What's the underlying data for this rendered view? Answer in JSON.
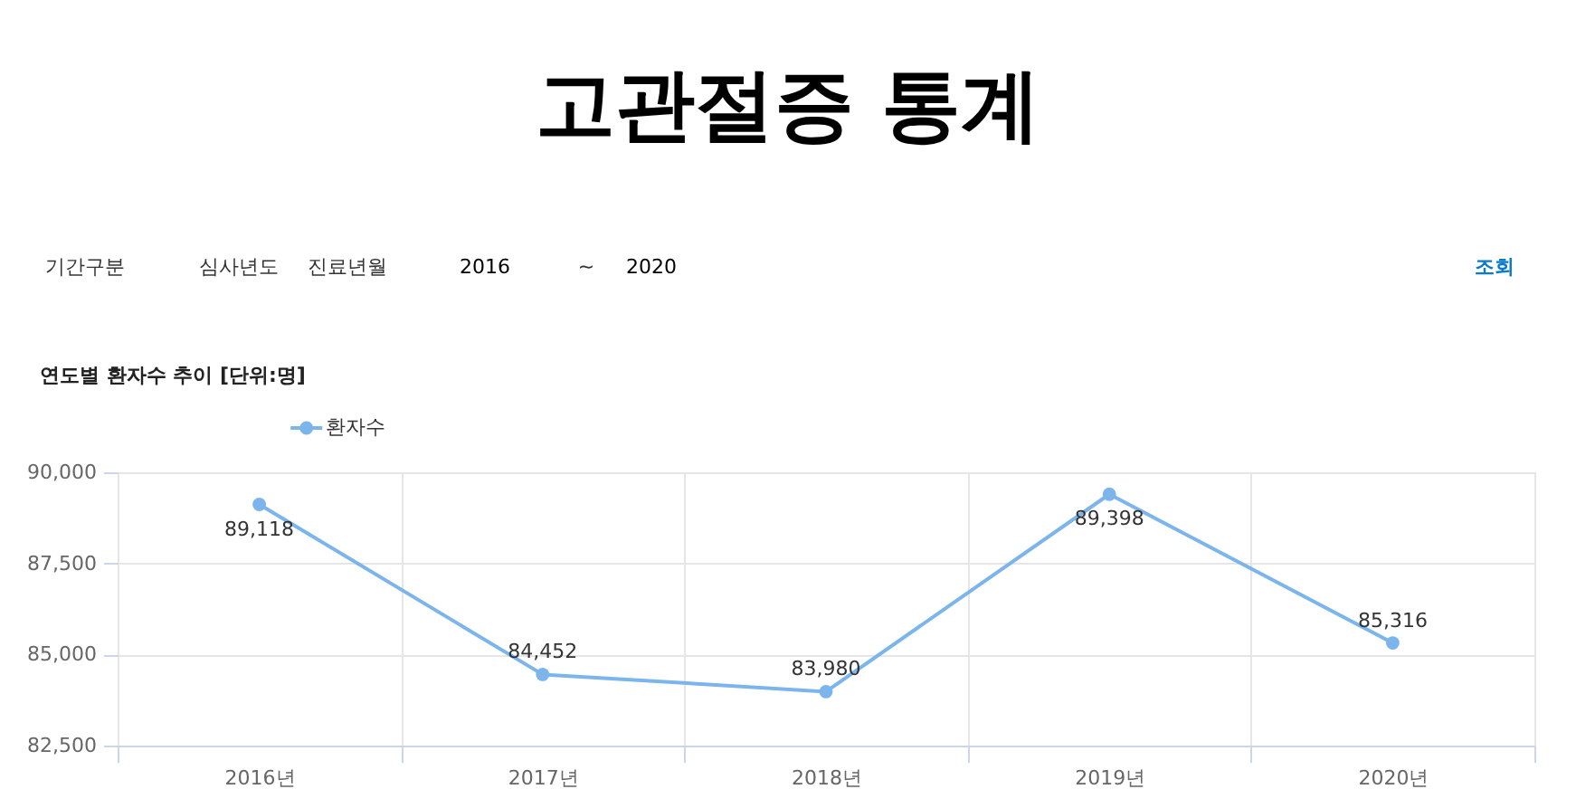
{
  "chart_data": {
    "type": "line",
    "title": "고관절증 통계",
    "subtitle": "연도별 환자수 추이 [단위:명]",
    "annotations": [
      "기간구분",
      "심사년도",
      "진료년월",
      "2016",
      "~",
      "2020",
      "조회"
    ],
    "categories": [
      "2016년",
      "2017년",
      "2018년",
      "2019년",
      "2020년"
    ],
    "series": [
      {
        "name": "환자수",
        "color": "#7cb5ec",
        "values": [
          89118,
          84452,
          83980,
          89398,
          85316
        ],
        "value_labels": [
          "89,118",
          "84,452",
          "83,980",
          "89,398",
          "85,316"
        ]
      }
    ],
    "ylim": [
      82500,
      90000
    ],
    "yticks": [
      {
        "value": 82500,
        "label": "82,500"
      },
      {
        "value": 85000,
        "label": "85,000"
      },
      {
        "value": 87500,
        "label": "87,500"
      },
      {
        "value": 90000,
        "label": "90,000"
      }
    ],
    "grid": true,
    "legend": "top left",
    "marker": "circle",
    "line_style": "solid"
  }
}
